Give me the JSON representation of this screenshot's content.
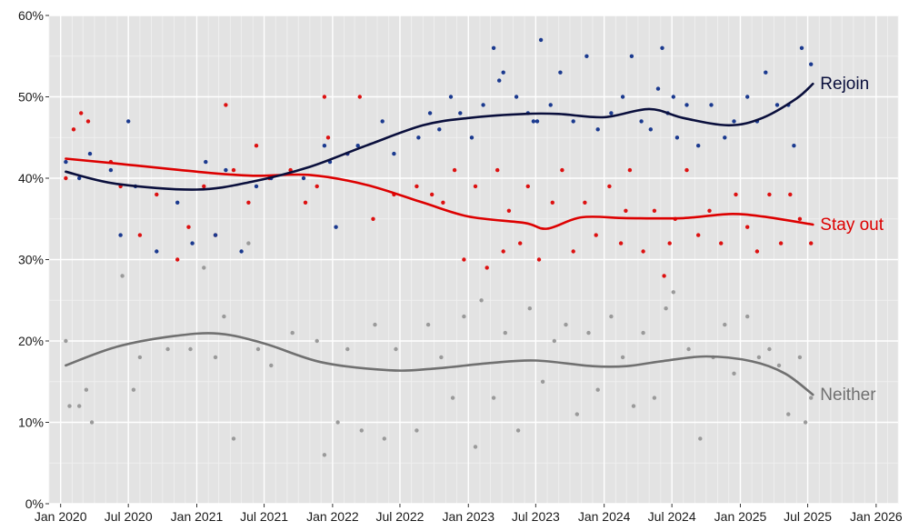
{
  "chart_data": {
    "type": "scatter",
    "title": "",
    "xlabel": "",
    "ylabel": "",
    "background": "#e3e3e3",
    "grid": true,
    "x_range": [
      "2019-12-01",
      "2026-03-01"
    ],
    "y_range": [
      0,
      60
    ],
    "y_ticks": [
      0,
      10,
      20,
      30,
      40,
      50,
      60
    ],
    "y_tick_labels": [
      "0%",
      "10%",
      "20%",
      "30%",
      "40%",
      "50%",
      "60%"
    ],
    "x_ticks": [
      "2020-01-01",
      "2020-07-01",
      "2021-01-01",
      "2021-07-01",
      "2022-01-01",
      "2022-07-01",
      "2023-01-01",
      "2023-07-01",
      "2024-01-01",
      "2024-07-01",
      "2025-01-01",
      "2025-07-01",
      "2026-01-01"
    ],
    "x_tick_labels": [
      "Jan 2020",
      "Jul 2020",
      "Jan 2021",
      "Jul 2021",
      "Jan 2022",
      "Jul 2022",
      "Jan 2023",
      "Jul 2023",
      "Jan 2024",
      "Jul 2024",
      "Jan 2025",
      "Jul 2025",
      "Jan 2026"
    ],
    "series": [
      {
        "name": "Rejoin",
        "color": "#1b3a8f",
        "trend_color": "#0a0f3c",
        "trend": [
          [
            "2020-01-15",
            40.8
          ],
          [
            "2020-06-01",
            39.3
          ],
          [
            "2021-01-01",
            38.6
          ],
          [
            "2021-06-01",
            39.6
          ],
          [
            "2021-11-01",
            41.4
          ],
          [
            "2022-04-01",
            44.0
          ],
          [
            "2022-09-01",
            46.5
          ],
          [
            "2023-01-01",
            47.4
          ],
          [
            "2023-06-01",
            47.9
          ],
          [
            "2023-09-01",
            47.9
          ],
          [
            "2024-01-01",
            47.5
          ],
          [
            "2024-05-01",
            48.5
          ],
          [
            "2024-08-01",
            47.4
          ],
          [
            "2024-12-01",
            46.5
          ],
          [
            "2025-03-01",
            47.4
          ],
          [
            "2025-06-01",
            49.8
          ],
          [
            "2025-07-15",
            51.6
          ]
        ],
        "points": [
          [
            "2020-01-15",
            42
          ],
          [
            "2020-02-20",
            40
          ],
          [
            "2020-03-20",
            43
          ],
          [
            "2020-05-15",
            41
          ],
          [
            "2020-06-10",
            33
          ],
          [
            "2020-07-01",
            47
          ],
          [
            "2020-07-20",
            39
          ],
          [
            "2020-09-15",
            31
          ],
          [
            "2020-11-10",
            37
          ],
          [
            "2020-12-20",
            32
          ],
          [
            "2021-01-25",
            42
          ],
          [
            "2021-02-20",
            33
          ],
          [
            "2021-03-20",
            41
          ],
          [
            "2021-05-01",
            31
          ],
          [
            "2021-06-10",
            39
          ],
          [
            "2021-07-20",
            40
          ],
          [
            "2021-10-15",
            40
          ],
          [
            "2021-12-10",
            44
          ],
          [
            "2021-12-25",
            42
          ],
          [
            "2022-01-10",
            34
          ],
          [
            "2022-02-10",
            43
          ],
          [
            "2022-03-10",
            44
          ],
          [
            "2022-05-15",
            47
          ],
          [
            "2022-06-15",
            43
          ],
          [
            "2022-08-20",
            45
          ],
          [
            "2022-09-20",
            48
          ],
          [
            "2022-10-15",
            46
          ],
          [
            "2022-11-15",
            50
          ],
          [
            "2022-12-10",
            48
          ],
          [
            "2023-01-10",
            45
          ],
          [
            "2023-02-10",
            49
          ],
          [
            "2023-03-10",
            56
          ],
          [
            "2023-04-05",
            53
          ],
          [
            "2023-05-10",
            50
          ],
          [
            "2023-06-10",
            48
          ],
          [
            "2023-07-05",
            47
          ],
          [
            "2023-07-15",
            57
          ],
          [
            "2023-08-10",
            49
          ],
          [
            "2023-09-05",
            53
          ],
          [
            "2023-10-10",
            47
          ],
          [
            "2023-11-15",
            55
          ],
          [
            "2023-12-15",
            46
          ],
          [
            "2024-01-20",
            48
          ],
          [
            "2024-02-20",
            50
          ],
          [
            "2024-03-15",
            55
          ],
          [
            "2024-04-10",
            47
          ],
          [
            "2024-05-05",
            46
          ],
          [
            "2024-05-25",
            51
          ],
          [
            "2024-06-05",
            56
          ],
          [
            "2024-06-20",
            48
          ],
          [
            "2024-07-15",
            45
          ],
          [
            "2024-08-10",
            49
          ],
          [
            "2024-09-10",
            44
          ],
          [
            "2024-10-15",
            49
          ],
          [
            "2024-11-20",
            45
          ],
          [
            "2024-12-15",
            47
          ],
          [
            "2025-01-20",
            50
          ],
          [
            "2025-02-15",
            47
          ],
          [
            "2025-03-10",
            53
          ],
          [
            "2025-04-10",
            49
          ],
          [
            "2025-05-10",
            49
          ],
          [
            "2025-06-15",
            56
          ],
          [
            "2025-07-10",
            54
          ],
          [
            "2023-03-25",
            52
          ],
          [
            "2023-06-25",
            47
          ],
          [
            "2024-07-05",
            50
          ],
          [
            "2025-05-25",
            44
          ]
        ]
      },
      {
        "name": "Stay out",
        "color": "#dd1111",
        "trend_color": "#dd0000",
        "trend": [
          [
            "2020-01-15",
            42.4
          ],
          [
            "2020-06-01",
            41.8
          ],
          [
            "2021-01-01",
            40.8
          ],
          [
            "2021-06-01",
            40.3
          ],
          [
            "2021-11-01",
            40.4
          ],
          [
            "2022-04-01",
            39.2
          ],
          [
            "2022-09-01",
            37.0
          ],
          [
            "2023-01-01",
            35.3
          ],
          [
            "2023-06-01",
            34.5
          ],
          [
            "2023-08-01",
            33.8
          ],
          [
            "2023-11-01",
            35.2
          ],
          [
            "2024-03-01",
            35.1
          ],
          [
            "2024-08-01",
            35.1
          ],
          [
            "2024-12-01",
            35.6
          ],
          [
            "2025-03-01",
            35.3
          ],
          [
            "2025-07-15",
            34.3
          ]
        ],
        "points": [
          [
            "2020-01-15",
            40
          ],
          [
            "2020-02-05",
            46
          ],
          [
            "2020-02-25",
            48
          ],
          [
            "2020-03-15",
            47
          ],
          [
            "2020-05-15",
            42
          ],
          [
            "2020-06-10",
            39
          ],
          [
            "2020-08-01",
            33
          ],
          [
            "2020-09-15",
            38
          ],
          [
            "2020-11-10",
            30
          ],
          [
            "2020-12-10",
            34
          ],
          [
            "2021-01-20",
            39
          ],
          [
            "2021-02-20",
            33
          ],
          [
            "2021-03-20",
            49
          ],
          [
            "2021-04-10",
            41
          ],
          [
            "2021-05-20",
            37
          ],
          [
            "2021-06-10",
            44
          ],
          [
            "2021-07-15",
            40
          ],
          [
            "2021-09-10",
            41
          ],
          [
            "2021-10-20",
            37
          ],
          [
            "2021-11-20",
            39
          ],
          [
            "2021-12-10",
            50
          ],
          [
            "2021-12-20",
            45
          ],
          [
            "2022-02-10",
            43
          ],
          [
            "2022-03-15",
            50
          ],
          [
            "2022-04-20",
            35
          ],
          [
            "2022-06-15",
            38
          ],
          [
            "2022-08-15",
            39
          ],
          [
            "2022-09-25",
            38
          ],
          [
            "2022-10-25",
            37
          ],
          [
            "2022-11-25",
            41
          ],
          [
            "2022-12-20",
            30
          ],
          [
            "2023-01-20",
            39
          ],
          [
            "2023-02-20",
            29
          ],
          [
            "2023-03-20",
            41
          ],
          [
            "2023-04-20",
            36
          ],
          [
            "2023-05-20",
            32
          ],
          [
            "2023-06-10",
            39
          ],
          [
            "2023-07-10",
            30
          ],
          [
            "2023-08-15",
            37
          ],
          [
            "2023-09-10",
            41
          ],
          [
            "2023-10-10",
            31
          ],
          [
            "2023-11-10",
            37
          ],
          [
            "2023-12-10",
            33
          ],
          [
            "2024-01-15",
            39
          ],
          [
            "2024-02-15",
            32
          ],
          [
            "2024-03-10",
            41
          ],
          [
            "2024-04-15",
            31
          ],
          [
            "2024-05-15",
            36
          ],
          [
            "2024-06-10",
            28
          ],
          [
            "2024-07-10",
            35
          ],
          [
            "2024-08-10",
            41
          ],
          [
            "2024-09-10",
            33
          ],
          [
            "2024-10-10",
            36
          ],
          [
            "2024-11-10",
            32
          ],
          [
            "2024-12-20",
            38
          ],
          [
            "2025-01-20",
            34
          ],
          [
            "2025-02-15",
            31
          ],
          [
            "2025-03-20",
            38
          ],
          [
            "2025-04-20",
            32
          ],
          [
            "2025-05-15",
            38
          ],
          [
            "2025-06-10",
            35
          ],
          [
            "2025-07-10",
            32
          ],
          [
            "2023-04-05",
            31
          ],
          [
            "2024-02-28",
            36
          ],
          [
            "2024-06-25",
            32
          ]
        ]
      },
      {
        "name": "Neither",
        "color": "#9a9a9a",
        "trend_color": "#707070",
        "trend": [
          [
            "2020-01-15",
            17.0
          ],
          [
            "2020-06-01",
            19.3
          ],
          [
            "2020-11-01",
            20.6
          ],
          [
            "2021-03-01",
            20.9
          ],
          [
            "2021-07-01",
            19.7
          ],
          [
            "2021-12-01",
            17.4
          ],
          [
            "2022-06-01",
            16.4
          ],
          [
            "2022-10-01",
            16.6
          ],
          [
            "2023-03-01",
            17.3
          ],
          [
            "2023-07-01",
            17.6
          ],
          [
            "2023-12-01",
            16.9
          ],
          [
            "2024-03-01",
            16.9
          ],
          [
            "2024-06-01",
            17.5
          ],
          [
            "2024-10-01",
            18.1
          ],
          [
            "2025-02-01",
            17.5
          ],
          [
            "2025-05-01",
            16.0
          ],
          [
            "2025-07-15",
            13.4
          ]
        ],
        "points": [
          [
            "2020-01-15",
            20
          ],
          [
            "2020-01-25",
            12
          ],
          [
            "2020-02-20",
            12
          ],
          [
            "2020-03-10",
            14
          ],
          [
            "2020-03-25",
            10
          ],
          [
            "2020-06-15",
            28
          ],
          [
            "2020-07-15",
            14
          ],
          [
            "2020-08-01",
            18
          ],
          [
            "2020-10-15",
            19
          ],
          [
            "2020-12-15",
            19
          ],
          [
            "2021-01-20",
            29
          ],
          [
            "2021-02-20",
            18
          ],
          [
            "2021-03-15",
            23
          ],
          [
            "2021-04-10",
            8
          ],
          [
            "2021-05-20",
            32
          ],
          [
            "2021-06-15",
            19
          ],
          [
            "2021-07-20",
            17
          ],
          [
            "2021-09-15",
            21
          ],
          [
            "2021-11-20",
            20
          ],
          [
            "2021-12-10",
            6
          ],
          [
            "2022-01-15",
            10
          ],
          [
            "2022-02-10",
            19
          ],
          [
            "2022-03-20",
            9
          ],
          [
            "2022-04-25",
            22
          ],
          [
            "2022-05-20",
            8
          ],
          [
            "2022-06-20",
            19
          ],
          [
            "2022-08-15",
            9
          ],
          [
            "2022-09-15",
            22
          ],
          [
            "2022-10-20",
            18
          ],
          [
            "2022-11-20",
            13
          ],
          [
            "2022-12-20",
            23
          ],
          [
            "2023-01-20",
            7
          ],
          [
            "2023-02-05",
            25
          ],
          [
            "2023-03-10",
            13
          ],
          [
            "2023-04-10",
            21
          ],
          [
            "2023-05-15",
            9
          ],
          [
            "2023-06-15",
            24
          ],
          [
            "2023-07-20",
            15
          ],
          [
            "2023-08-20",
            20
          ],
          [
            "2023-09-20",
            22
          ],
          [
            "2023-10-20",
            11
          ],
          [
            "2023-11-20",
            21
          ],
          [
            "2023-12-15",
            14
          ],
          [
            "2024-01-20",
            23
          ],
          [
            "2024-02-20",
            18
          ],
          [
            "2024-03-20",
            12
          ],
          [
            "2024-04-15",
            21
          ],
          [
            "2024-05-15",
            13
          ],
          [
            "2024-06-15",
            24
          ],
          [
            "2024-07-05",
            26
          ],
          [
            "2024-08-15",
            19
          ],
          [
            "2024-09-15",
            8
          ],
          [
            "2024-10-20",
            18
          ],
          [
            "2024-11-20",
            22
          ],
          [
            "2024-12-15",
            16
          ],
          [
            "2025-01-20",
            23
          ],
          [
            "2025-02-20",
            18
          ],
          [
            "2025-03-20",
            19
          ],
          [
            "2025-04-15",
            17
          ],
          [
            "2025-05-10",
            11
          ],
          [
            "2025-06-10",
            18
          ],
          [
            "2025-06-25",
            10
          ],
          [
            "2025-07-10",
            13
          ]
        ]
      }
    ]
  }
}
